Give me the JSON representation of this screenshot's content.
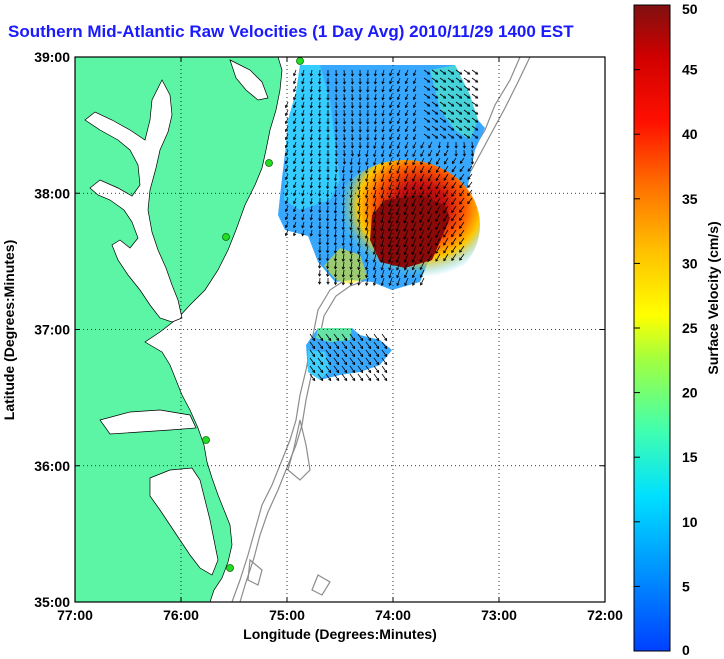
{
  "title": "Southern Mid-Atlantic Raw Velocities (1 Day Avg) 2010/11/29 1400 EST",
  "map": {
    "xlabel": "Longitude (Degrees:Minutes)",
    "ylabel": "Latitude (Degrees:Minutes)",
    "lon_ticks": [
      "77:00",
      "76:00",
      "75:00",
      "74:00",
      "73:00",
      "72:00"
    ],
    "lat_ticks": [
      "39:00",
      "38:00",
      "37:00",
      "36:00",
      "35:00"
    ],
    "lon_range": [
      -77,
      -72
    ],
    "lat_range": [
      35,
      39
    ],
    "grid": true,
    "land_color": "#5bf5a5",
    "contour_color": "#8c8c8c",
    "station_color": "#22dd22"
  },
  "colorbar": {
    "label": "Surface Velocity (cm/s)",
    "ticks": [
      "50",
      "45",
      "40",
      "35",
      "30",
      "25",
      "20",
      "15",
      "10",
      "5",
      "0"
    ],
    "range": [
      0,
      50
    ]
  }
}
